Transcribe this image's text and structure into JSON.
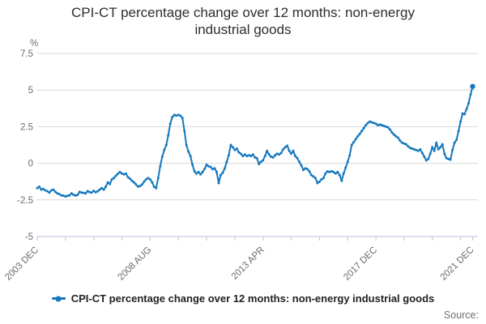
{
  "title": {
    "line1": "CPI-CT percentage change over 12 months: non-energy",
    "line2": "industrial goods"
  },
  "legend": {
    "label": "CPI-CT percentage change over 12 months: non-energy industrial goods"
  },
  "source": {
    "label": "Source:"
  },
  "colors": {
    "line": "#1478be",
    "grid": "#d9d9d9",
    "axis": "#c6cde2",
    "tick_text": "#6b6b6b",
    "title_text": "#2e2e2e",
    "legend_text": "#222222",
    "source_text": "#6f6f6f",
    "background": "#ffffff"
  },
  "chart_data": {
    "type": "line",
    "title": "CPI-CT percentage change over 12 months: non-energy industrial goods",
    "y_unit": "%",
    "ylim": [
      -5,
      7.5
    ],
    "grid": "horizontal",
    "legend_position": "bottom",
    "x_start": "2003-12",
    "x_end": "2021-12",
    "x_frequency": "monthly",
    "x_tick_interval_months": 14,
    "x_tick_labels": [
      {
        "label": "2003 DEC",
        "month": 0
      },
      {
        "label": "2008 AUG",
        "month": 56
      },
      {
        "label": "2013 APR",
        "month": 112
      },
      {
        "label": "2017 DEC",
        "month": 168
      },
      {
        "label": "2021 DEC",
        "month": 216
      }
    ],
    "y_ticks": [
      {
        "label": "7.5",
        "value": 7.5
      },
      {
        "label": "5",
        "value": 5
      },
      {
        "label": "2.5",
        "value": 2.5
      },
      {
        "label": "0",
        "value": 0
      },
      {
        "label": "-2.5",
        "value": -2.5
      },
      {
        "label": "-5",
        "value": -5
      }
    ],
    "series": [
      {
        "name": "CPI-CT percentage change over 12 months: non-energy industrial goods",
        "color": "#1478be",
        "values": [
          -1.7,
          -1.6,
          -1.8,
          -1.75,
          -1.85,
          -1.9,
          -2.0,
          -1.85,
          -1.8,
          -1.95,
          -2.05,
          -2.1,
          -2.2,
          -2.2,
          -2.27,
          -2.22,
          -2.19,
          -2.05,
          -2.15,
          -2.2,
          -2.15,
          -1.95,
          -2.0,
          -2.02,
          -2.05,
          -1.9,
          -1.97,
          -2.0,
          -1.88,
          -1.98,
          -1.9,
          -1.8,
          -1.7,
          -1.8,
          -1.6,
          -1.3,
          -1.42,
          -1.1,
          -1.0,
          -0.85,
          -0.72,
          -0.6,
          -0.7,
          -0.75,
          -0.7,
          -0.95,
          -1.05,
          -1.2,
          -1.3,
          -1.45,
          -1.6,
          -1.55,
          -1.45,
          -1.25,
          -1.1,
          -1.0,
          -1.1,
          -1.3,
          -1.6,
          -1.7,
          -1.0,
          -0.2,
          0.45,
          0.9,
          1.25,
          1.9,
          2.7,
          3.15,
          3.3,
          3.25,
          3.3,
          3.25,
          3.1,
          2.2,
          1.25,
          0.8,
          0.5,
          -0.1,
          -0.55,
          -0.7,
          -0.6,
          -0.75,
          -0.6,
          -0.4,
          -0.1,
          -0.2,
          -0.25,
          -0.4,
          -0.35,
          -0.6,
          -1.35,
          -0.8,
          -0.65,
          -0.35,
          0.1,
          0.55,
          1.25,
          1.1,
          0.9,
          1.0,
          0.75,
          0.65,
          0.5,
          0.6,
          0.5,
          0.55,
          0.5,
          0.6,
          0.4,
          0.35,
          -0.05,
          0.1,
          0.2,
          0.5,
          0.85,
          0.6,
          0.45,
          0.4,
          0.55,
          0.65,
          0.6,
          0.7,
          0.95,
          1.1,
          1.2,
          0.85,
          0.65,
          0.85,
          0.5,
          0.35,
          0.1,
          -0.15,
          -0.45,
          -0.35,
          -0.4,
          -0.55,
          -0.8,
          -0.9,
          -1.0,
          -1.35,
          -1.25,
          -1.1,
          -1.0,
          -0.7,
          -0.55,
          -0.6,
          -0.55,
          -0.6,
          -0.7,
          -0.6,
          -0.8,
          -1.2,
          -0.7,
          -0.3,
          0.1,
          0.55,
          1.25,
          1.45,
          1.65,
          1.85,
          2.0,
          2.2,
          2.4,
          2.6,
          2.75,
          2.85,
          2.8,
          2.75,
          2.7,
          2.6,
          2.65,
          2.6,
          2.55,
          2.5,
          2.45,
          2.3,
          2.1,
          1.95,
          1.85,
          1.75,
          1.55,
          1.4,
          1.35,
          1.3,
          1.15,
          1.05,
          1.0,
          0.95,
          0.9,
          0.85,
          0.95,
          0.7,
          0.45,
          0.2,
          0.3,
          0.65,
          1.1,
          0.85,
          1.4,
          0.95,
          1.1,
          1.3,
          0.65,
          0.35,
          0.3,
          0.25,
          0.9,
          1.4,
          1.6,
          2.2,
          2.85,
          3.4,
          3.35,
          3.7,
          4.1,
          4.7,
          5.25
        ]
      }
    ]
  }
}
